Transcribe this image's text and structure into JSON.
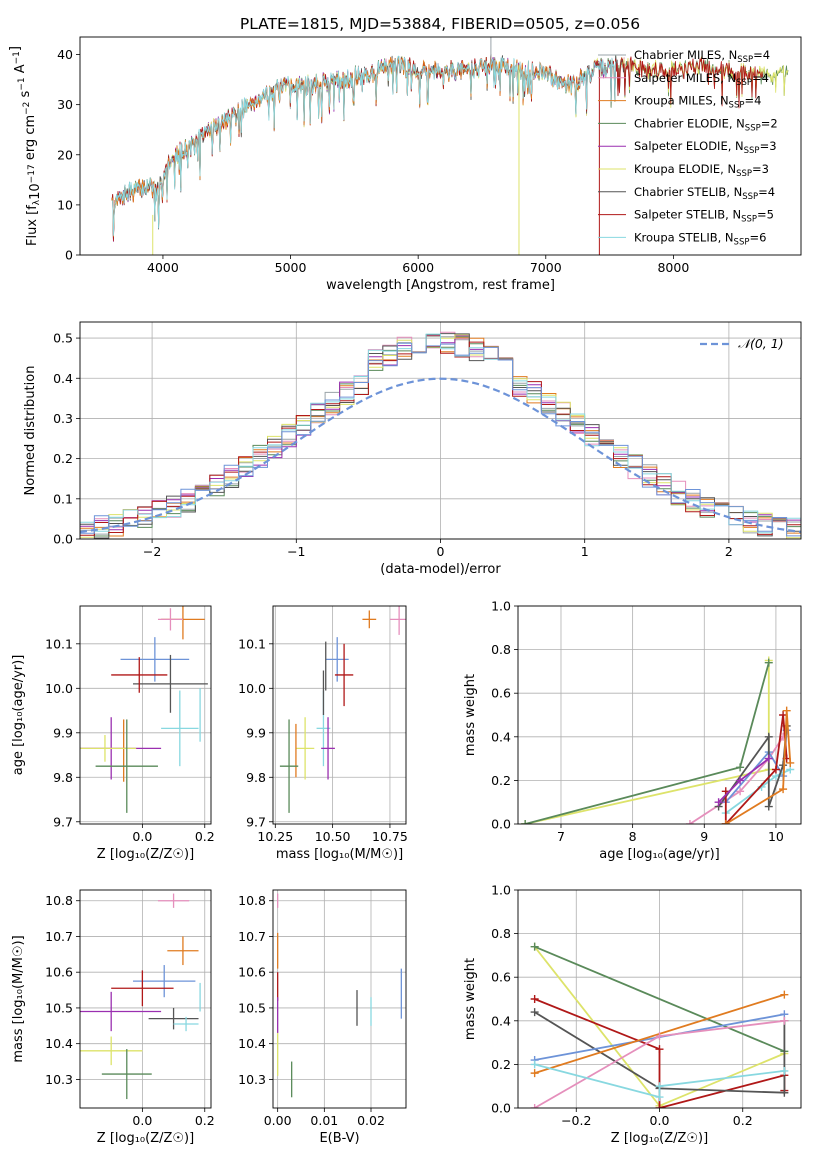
{
  "figure": {
    "title": "PLATE=1815, MJD=53884, FIBERID=0505, z=0.056"
  },
  "colors": {
    "Chabrier MILES": "#9aa3a8",
    "Salpeter MILES": "#e58fbc",
    "Kroupa MILES": "#e07b20",
    "Chabrier ELODIE": "#5a8a5a",
    "Salpeter ELODIE": "#9a2fb0",
    "Kroupa ELODIE": "#dde36a",
    "Chabrier STELIB": "#555555",
    "Salpeter STELIB": "#b01818",
    "Kroupa STELIB": "#88d8e0",
    "blue": "#6d93d8",
    "normal": "#6d93d8"
  },
  "chart_data": [
    {
      "id": "spectrum",
      "type": "line",
      "xlabel": "wavelength [Angstrom, rest frame]",
      "ylabel_parts": [
        "Flux [f",
        "λ",
        "10",
        "−17",
        " erg cm",
        "−2",
        " s",
        "−1",
        " A",
        "−1",
        "]"
      ],
      "xlim": [
        3350,
        9000
      ],
      "ylim": [
        0,
        43.5
      ],
      "xticks": [
        4000,
        5000,
        6000,
        7000,
        8000
      ],
      "yticks": [
        0,
        10,
        20,
        30,
        40
      ],
      "grid": false,
      "legend_position": "top-right",
      "legend": [
        {
          "label": "Chabrier MILES, N",
          "sub": "SSP",
          "suffix": "=4",
          "color_key": "Chabrier MILES"
        },
        {
          "label": "Salpeter MILES, N",
          "sub": "SSP",
          "suffix": "=4",
          "color_key": "Salpeter MILES"
        },
        {
          "label": "Kroupa MILES, N",
          "sub": "SSP",
          "suffix": "=4",
          "color_key": "Kroupa MILES"
        },
        {
          "label": "Chabrier ELODIE, N",
          "sub": "SSP",
          "suffix": "=2",
          "color_key": "Chabrier ELODIE"
        },
        {
          "label": "Salpeter ELODIE, N",
          "sub": "SSP",
          "suffix": "=3",
          "color_key": "Salpeter ELODIE"
        },
        {
          "label": "Kroupa ELODIE, N",
          "sub": "SSP",
          "suffix": "=3",
          "color_key": "Kroupa ELODIE"
        },
        {
          "label": "Chabrier STELIB, N",
          "sub": "SSP",
          "suffix": "=4",
          "color_key": "Chabrier STELIB"
        },
        {
          "label": "Salpeter STELIB, N",
          "sub": "SSP",
          "suffix": "=5",
          "color_key": "Salpeter STELIB"
        },
        {
          "label": "Kroupa STELIB, N",
          "sub": "SSP",
          "suffix": "=6",
          "color_key": "Kroupa STELIB"
        }
      ],
      "continuum": [
        [
          3600,
          10
        ],
        [
          3700,
          12
        ],
        [
          3800,
          13
        ],
        [
          3900,
          14
        ],
        [
          3950,
          12
        ],
        [
          4050,
          19
        ],
        [
          4150,
          21
        ],
        [
          4250,
          22
        ],
        [
          4350,
          25
        ],
        [
          4450,
          26
        ],
        [
          4600,
          29
        ],
        [
          4800,
          32
        ],
        [
          5000,
          34
        ],
        [
          5200,
          34
        ],
        [
          5400,
          35
        ],
        [
          5600,
          36
        ],
        [
          5800,
          38
        ],
        [
          6000,
          37
        ],
        [
          6200,
          37
        ],
        [
          6400,
          37
        ],
        [
          6600,
          38
        ],
        [
          6800,
          37
        ],
        [
          7000,
          36
        ],
        [
          7200,
          34
        ],
        [
          7400,
          37
        ],
        [
          7600,
          38
        ],
        [
          7800,
          37
        ],
        [
          8000,
          37
        ],
        [
          8200,
          38
        ],
        [
          8400,
          37
        ],
        [
          8600,
          36
        ],
        [
          8900,
          36
        ]
      ],
      "spectrum_wmax": [
        7600,
        7750,
        7300,
        8900,
        7500,
        8900,
        7650,
        8700,
        7550
      ],
      "artifacts": [
        {
          "color_key": "Kroupa ELODIE",
          "x": 3920,
          "y_from": 8,
          "y_to": 0
        },
        {
          "color_key": "Kroupa ELODIE",
          "x": 6790,
          "y_from": 38,
          "y_to": 0
        },
        {
          "color_key": "Salpeter STELIB",
          "x": 7420,
          "y_from": 37,
          "y_to": 0
        },
        {
          "color_key": "Chabrier MILES",
          "x": 6570,
          "y_from": 38,
          "y_to": 43.5
        }
      ]
    },
    {
      "id": "residuals",
      "type": "histogram",
      "xlabel": "(data-model)/error",
      "ylabel": "Normed distribution",
      "xlim": [
        -2.5,
        2.5
      ],
      "ylim": [
        0,
        0.54
      ],
      "xticks": [
        -2,
        -1,
        0,
        1,
        2
      ],
      "yticks": [
        0.0,
        0.1,
        0.2,
        0.3,
        0.4,
        0.5
      ],
      "grid": true,
      "legend_position": "top-right",
      "legend": [
        {
          "label": "𝒩(0, 1)",
          "color_key": "normal"
        }
      ],
      "bin_width": 0.1
    },
    {
      "id": "age-vs-Z",
      "type": "errorbar",
      "xlabel": "Z [log₁₀(Z/Z☉)]",
      "ylabel": "age  [log₁₀(age/yr)]",
      "xlim": [
        -0.2,
        0.22
      ],
      "ylim": [
        9.695,
        10.185
      ],
      "xticks": [
        0.0,
        0.2
      ],
      "yticks": [
        9.7,
        9.8,
        9.9,
        10.0,
        10.1
      ],
      "grid": true,
      "points": [
        {
          "color_key": "Kroupa MILES",
          "x": 0.13,
          "xerr": 0.07,
          "y": 10.155,
          "yerr": 0.045
        },
        {
          "color_key": "Salpeter MILES",
          "x": 0.09,
          "xerr": 0.04,
          "y": 10.155,
          "yerr": 0.025
        },
        {
          "color_key": "blue",
          "x": 0.04,
          "xerr": 0.11,
          "y": 10.065,
          "yerr": 0.05
        },
        {
          "color_key": "Chabrier STELIB",
          "x": 0.09,
          "xerr": 0.12,
          "y": 10.01,
          "yerr": 0.065
        },
        {
          "color_key": "Salpeter STELIB",
          "x": -0.01,
          "xerr": 0.09,
          "y": 10.03,
          "yerr": 0.04
        },
        {
          "color_key": "Kroupa STELIB",
          "x": 0.12,
          "xerr": 0.06,
          "y": 9.91,
          "yerr": 0.085
        },
        {
          "color_key": "Kroupa STELIB",
          "x": 0.185,
          "xerr": 0.0,
          "y": 9.94,
          "yerr": 0.06
        },
        {
          "color_key": "Salpeter ELODIE",
          "x": -0.1,
          "xerr": 0.16,
          "y": 9.865,
          "yerr": 0.07
        },
        {
          "color_key": "Kroupa MILES",
          "x": -0.06,
          "xerr": 0.0,
          "y": 9.86,
          "yerr": 0.07
        },
        {
          "color_key": "Kroupa ELODIE",
          "x": -0.12,
          "xerr": 0.1,
          "y": 9.865,
          "yerr": 0.03
        },
        {
          "color_key": "Chabrier ELODIE",
          "x": -0.05,
          "xerr": 0.1,
          "y": 9.825,
          "yerr": 0.105
        }
      ]
    },
    {
      "id": "age-vs-mass",
      "type": "errorbar",
      "xlabel": "mass [log₁₀(M/M☉)]",
      "ylabel": "",
      "xlim": [
        10.24,
        10.82
      ],
      "ylim": [
        9.695,
        10.185
      ],
      "xticks": [
        10.25,
        10.5,
        10.75
      ],
      "yticks": [
        9.7,
        9.8,
        9.9,
        10.0,
        10.1
      ],
      "grid": true,
      "points": [
        {
          "color_key": "Kroupa MILES",
          "x": 10.66,
          "xerr": 0.03,
          "y": 10.155,
          "yerr": 0.02
        },
        {
          "color_key": "Salpeter MILES",
          "x": 10.79,
          "xerr": 0.04,
          "y": 10.155,
          "yerr": 0.035
        },
        {
          "color_key": "blue",
          "x": 10.52,
          "xerr": 0.05,
          "y": 10.065,
          "yerr": 0.05
        },
        {
          "color_key": "Chabrier STELIB",
          "x": 10.47,
          "xerr": 0.0,
          "y": 10.05,
          "yerr": 0.055
        },
        {
          "color_key": "Salpeter STELIB",
          "x": 10.55,
          "xerr": 0.04,
          "y": 10.03,
          "yerr": 0.07
        },
        {
          "color_key": "Kroupa STELIB",
          "x": 10.46,
          "xerr": 0.03,
          "y": 9.91,
          "yerr": 0.085
        },
        {
          "color_key": "Chabrier STELIB",
          "x": 10.46,
          "xerr": 0.0,
          "y": 9.99,
          "yerr": 0.05
        },
        {
          "color_key": "Salpeter ELODIE",
          "x": 10.48,
          "xerr": 0.03,
          "y": 9.865,
          "yerr": 0.07
        },
        {
          "color_key": "Kroupa ELODIE",
          "x": 10.38,
          "xerr": 0.04,
          "y": 9.865,
          "yerr": 0.07
        },
        {
          "color_key": "Kroupa MILES",
          "x": 10.34,
          "xerr": 0.0,
          "y": 9.86,
          "yerr": 0.06
        },
        {
          "color_key": "Chabrier ELODIE",
          "x": 10.31,
          "xerr": 0.04,
          "y": 9.825,
          "yerr": 0.105
        }
      ]
    },
    {
      "id": "weight-vs-age",
      "type": "line",
      "xlabel": "age  [log₁₀(age/yr)]",
      "ylabel": "mass weight",
      "xlim": [
        6.4,
        10.35
      ],
      "ylim": [
        0,
        1
      ],
      "xticks": [
        7,
        8,
        9,
        10
      ],
      "yticks": [
        0.0,
        0.2,
        0.4,
        0.6,
        0.8,
        1.0
      ],
      "grid": true,
      "series": [
        {
          "color_key": "Kroupa ELODIE",
          "points": [
            [
              6.5,
              0.0
            ],
            [
              9.9,
              0.25
            ],
            [
              9.9,
              0.75
            ]
          ]
        },
        {
          "color_key": "Chabrier ELODIE",
          "points": [
            [
              6.5,
              0.0
            ],
            [
              9.5,
              0.26
            ],
            [
              9.9,
              0.74
            ]
          ]
        },
        {
          "color_key": "Salpeter MILES",
          "points": [
            [
              8.8,
              0.0
            ],
            [
              9.5,
              0.15
            ],
            [
              9.9,
              0.3
            ],
            [
              10.1,
              0.4
            ]
          ]
        },
        {
          "color_key": "blue",
          "points": [
            [
              9.3,
              0.1
            ],
            [
              9.9,
              0.33
            ],
            [
              10.1,
              0.22
            ],
            [
              10.15,
              0.43
            ]
          ]
        },
        {
          "color_key": "Kroupa STELIB",
          "points": [
            [
              9.3,
              0.05
            ],
            [
              9.8,
              0.17
            ],
            [
              10.0,
              0.22
            ],
            [
              10.2,
              0.25
            ]
          ]
        },
        {
          "color_key": "Chabrier STELIB",
          "points": [
            [
              9.2,
              0.08
            ],
            [
              9.9,
              0.4
            ],
            [
              9.9,
              0.08
            ],
            [
              10.1,
              0.27
            ],
            [
              10.15,
              0.45
            ]
          ]
        },
        {
          "color_key": "Salpeter STELIB",
          "points": [
            [
              9.3,
              0.15
            ],
            [
              9.3,
              0.0
            ],
            [
              10.0,
              0.25
            ],
            [
              10.1,
              0.5
            ],
            [
              10.15,
              0.3
            ]
          ]
        },
        {
          "color_key": "Kroupa MILES",
          "points": [
            [
              9.3,
              0.0
            ],
            [
              10.1,
              0.16
            ],
            [
              10.15,
              0.52
            ],
            [
              10.2,
              0.28
            ]
          ]
        },
        {
          "color_key": "Salpeter ELODIE",
          "points": [
            [
              9.2,
              0.1
            ],
            [
              9.5,
              0.2
            ],
            [
              9.9,
              0.3
            ]
          ]
        }
      ]
    },
    {
      "id": "mass-vs-Z",
      "type": "errorbar",
      "xlabel": "Z [log₁₀(Z/Z☉)]",
      "ylabel": "mass [log₁₀(M/M☉)]",
      "xlim": [
        -0.2,
        0.22
      ],
      "ylim": [
        10.22,
        10.83
      ],
      "xticks": [
        0.0,
        0.2
      ],
      "yticks": [
        10.3,
        10.4,
        10.5,
        10.6,
        10.7,
        10.8
      ],
      "grid": true,
      "points": [
        {
          "color_key": "Salpeter MILES",
          "x": 0.1,
          "xerr": 0.05,
          "y": 10.8,
          "yerr": 0.02
        },
        {
          "color_key": "Kroupa MILES",
          "x": 0.13,
          "xerr": 0.05,
          "y": 10.66,
          "yerr": 0.04
        },
        {
          "color_key": "blue",
          "x": 0.07,
          "xerr": 0.1,
          "y": 10.575,
          "yerr": 0.045
        },
        {
          "color_key": "Salpeter STELIB",
          "x": 0.0,
          "xerr": 0.1,
          "y": 10.555,
          "yerr": 0.05
        },
        {
          "color_key": "Salpeter ELODIE",
          "x": -0.1,
          "xerr": 0.16,
          "y": 10.49,
          "yerr": 0.055
        },
        {
          "color_key": "Chabrier STELIB",
          "x": 0.1,
          "xerr": 0.08,
          "y": 10.47,
          "yerr": 0.03
        },
        {
          "color_key": "Kroupa STELIB",
          "x": 0.14,
          "xerr": 0.04,
          "y": 10.455,
          "yerr": 0.02
        },
        {
          "color_key": "Kroupa STELIB",
          "x": 0.185,
          "xerr": 0.0,
          "y": 10.53,
          "yerr": 0.04
        },
        {
          "color_key": "Kroupa ELODIE",
          "x": -0.1,
          "xerr": 0.1,
          "y": 10.38,
          "yerr": 0.04
        },
        {
          "color_key": "Chabrier ELODIE",
          "x": -0.05,
          "xerr": 0.08,
          "y": 10.315,
          "yerr": 0.07
        }
      ]
    },
    {
      "id": "mass-vs-ebv",
      "type": "errorbar",
      "xlabel": "E(B-V)",
      "ylabel": "",
      "xlim": [
        -0.001,
        0.0275
      ],
      "ylim": [
        10.22,
        10.83
      ],
      "xticks": [
        0.0,
        0.01,
        0.02
      ],
      "yticks": [
        10.3,
        10.4,
        10.5,
        10.6,
        10.7,
        10.8
      ],
      "grid": true,
      "points": [
        {
          "color_key": "Salpeter MILES",
          "x": 0.0,
          "xerr": 0.0,
          "y": 10.8,
          "yerr": 0.02
        },
        {
          "color_key": "Kroupa MILES",
          "x": 0.0,
          "xerr": 0.0,
          "y": 10.66,
          "yerr": 0.05
        },
        {
          "color_key": "Salpeter STELIB",
          "x": 0.0,
          "xerr": 0.0,
          "y": 10.56,
          "yerr": 0.04
        },
        {
          "color_key": "Salpeter ELODIE",
          "x": 0.0,
          "xerr": 0.0,
          "y": 10.48,
          "yerr": 0.05
        },
        {
          "color_key": "Kroupa ELODIE",
          "x": 0.0,
          "xerr": 0.0,
          "y": 10.37,
          "yerr": 0.06
        },
        {
          "color_key": "Chabrier ELODIE",
          "x": 0.003,
          "xerr": 0.0,
          "y": 10.3,
          "yerr": 0.05
        },
        {
          "color_key": "Chabrier STELIB",
          "x": 0.017,
          "xerr": 0.0,
          "y": 10.5,
          "yerr": 0.05
        },
        {
          "color_key": "Kroupa STELIB",
          "x": 0.02,
          "xerr": 0.0,
          "y": 10.49,
          "yerr": 0.04
        },
        {
          "color_key": "blue",
          "x": 0.0265,
          "xerr": 0.0,
          "y": 10.54,
          "yerr": 0.07
        }
      ]
    },
    {
      "id": "weight-vs-Z",
      "type": "line",
      "xlabel": "Z [log₁₀(Z/Z☉)]",
      "ylabel": "mass weight",
      "xlim": [
        -0.34,
        0.34
      ],
      "ylim": [
        0,
        1
      ],
      "xticks": [
        -0.2,
        0.0,
        0.2
      ],
      "yticks": [
        0.0,
        0.2,
        0.4,
        0.6,
        0.8,
        1.0
      ],
      "grid": true,
      "series": [
        {
          "color_key": "Kroupa ELODIE",
          "points": [
            [
              -0.3,
              0.74
            ],
            [
              0.0,
              0.01
            ],
            [
              0.3,
              0.25
            ]
          ]
        },
        {
          "color_key": "Chabrier ELODIE",
          "points": [
            [
              -0.3,
              0.74
            ],
            [
              0.3,
              0.26
            ]
          ]
        },
        {
          "color_key": "Salpeter STELIB",
          "points": [
            [
              -0.3,
              0.5
            ],
            [
              0.0,
              0.27
            ],
            [
              0.0,
              0.0
            ],
            [
              0.3,
              0.15
            ],
            [
              0.3,
              0.08
            ]
          ]
        },
        {
          "color_key": "Chabrier STELIB",
          "points": [
            [
              -0.3,
              0.44
            ],
            [
              0.0,
              0.09
            ],
            [
              0.3,
              0.07
            ],
            [
              0.3,
              0.4
            ]
          ]
        },
        {
          "color_key": "blue",
          "points": [
            [
              -0.3,
              0.22
            ],
            [
              0.3,
              0.43
            ]
          ]
        },
        {
          "color_key": "Kroupa MILES",
          "points": [
            [
              -0.3,
              0.16
            ],
            [
              0.3,
              0.52
            ]
          ]
        },
        {
          "color_key": "Salpeter MILES",
          "points": [
            [
              -0.3,
              0.0
            ],
            [
              0.0,
              0.33
            ],
            [
              0.3,
              0.4
            ]
          ]
        },
        {
          "color_key": "Kroupa STELIB",
          "points": [
            [
              -0.3,
              0.2
            ],
            [
              0.0,
              0.05
            ],
            [
              0.0,
              0.1
            ],
            [
              0.3,
              0.17
            ]
          ]
        }
      ]
    }
  ]
}
